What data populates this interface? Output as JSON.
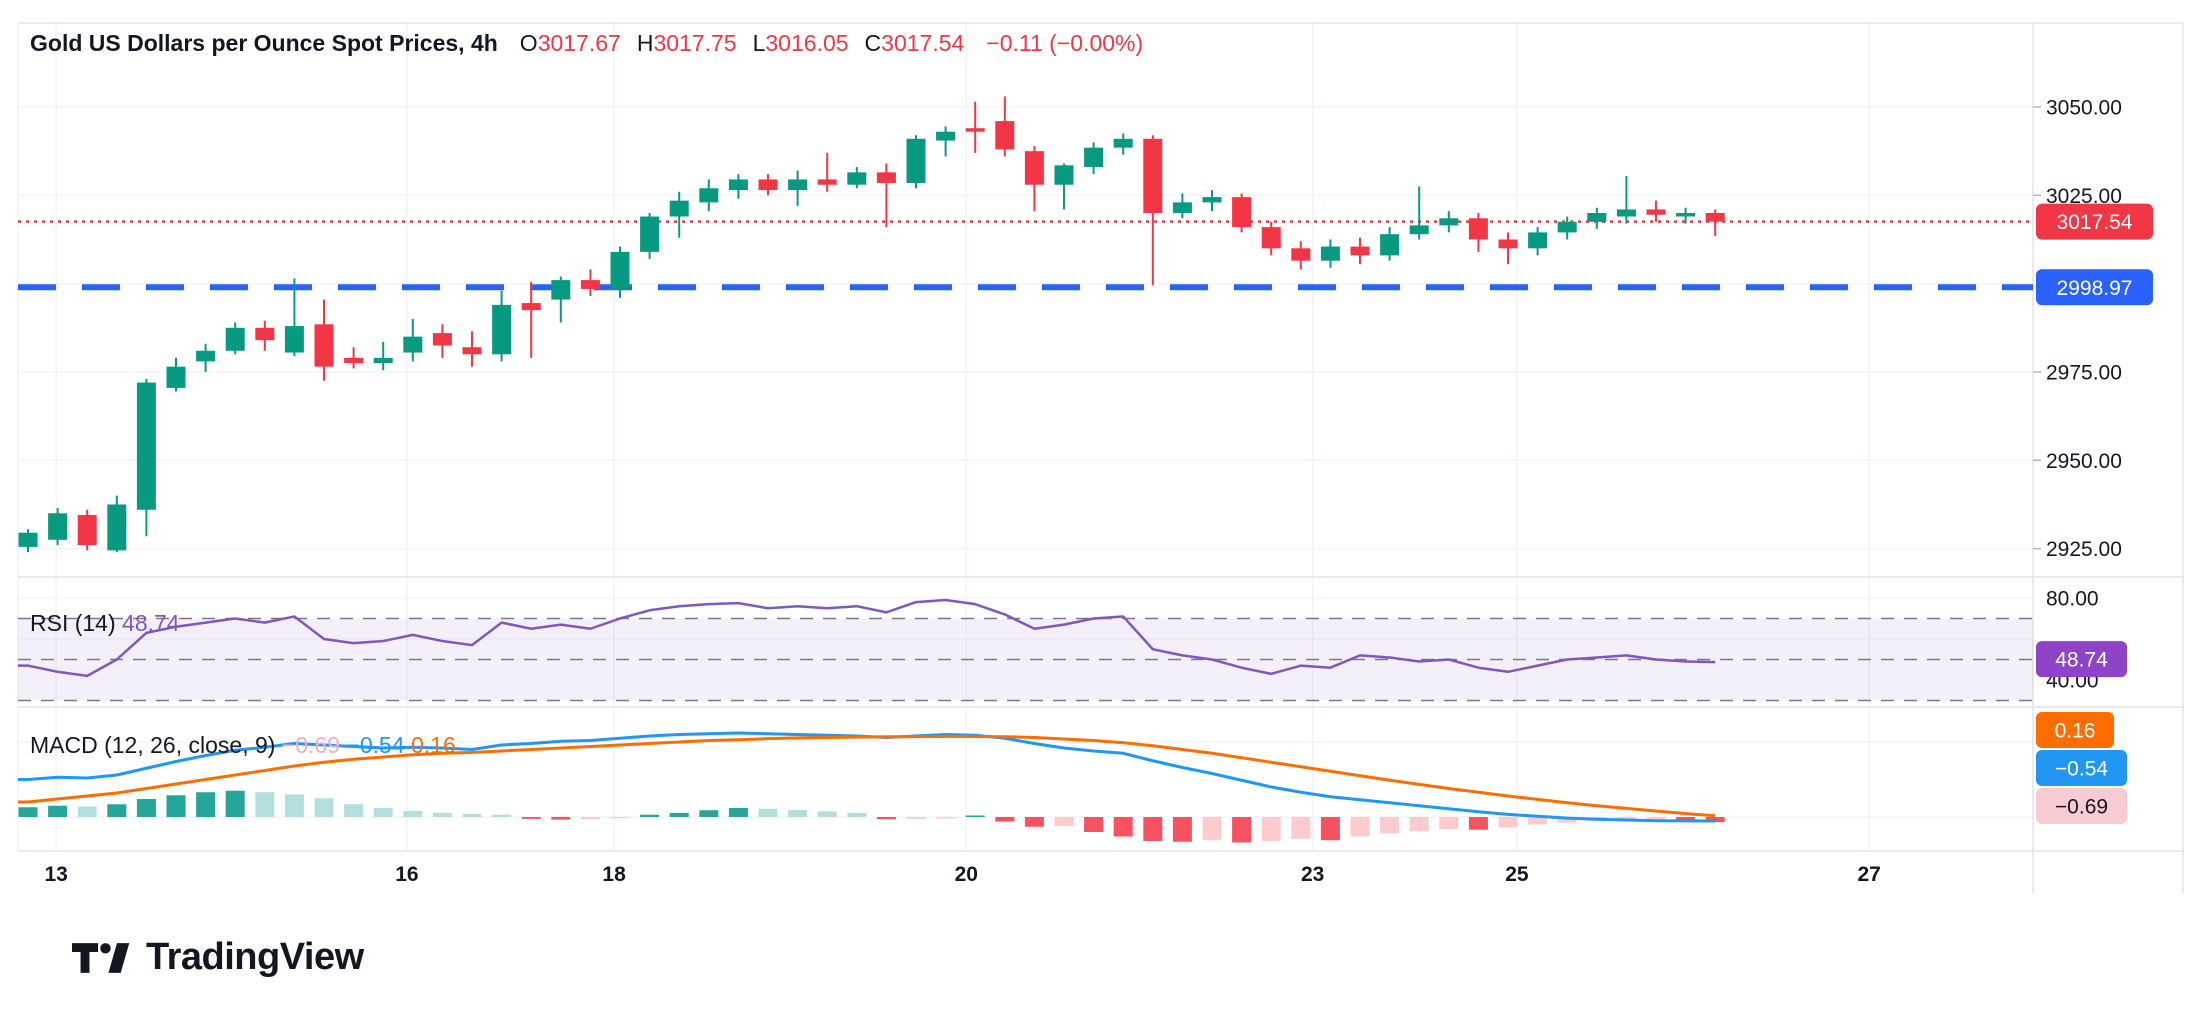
{
  "header": {
    "title": "Gold US Dollars per Ounce Spot Prices, 4h",
    "ohlc": [
      {
        "label": "O",
        "value": "3017.67"
      },
      {
        "label": "H",
        "value": "3017.75"
      },
      {
        "label": "L",
        "value": "3016.05"
      },
      {
        "label": "C",
        "value": "3017.54"
      }
    ],
    "change": "−0.11 (−0.00%)",
    "label_color": "#131722",
    "value_color": "#F23645"
  },
  "chart_data": {
    "type": "candlestick",
    "title": "Gold US Dollars per Ounce Spot Prices, 4h",
    "timeframe": "4h",
    "x_labels": [
      {
        "label": "13",
        "i": 0.95
      },
      {
        "label": "16",
        "i": 12.8
      },
      {
        "label": "18",
        "i": 19.8
      },
      {
        "label": "20",
        "i": 31.7
      },
      {
        "label": "23",
        "i": 43.4
      },
      {
        "label": "25",
        "i": 50.3
      },
      {
        "label": "27",
        "i": 62.2
      }
    ],
    "price_pane": {
      "up_color": "#089981",
      "down_color": "#F23645",
      "gridlines": [
        3050,
        3025,
        3000,
        2975,
        2950,
        2925
      ],
      "last_price_line": {
        "price": 3017.54,
        "color": "#F23645",
        "style": "dotted"
      },
      "level_line": {
        "price": 2998.97,
        "color": "#2962FF",
        "style": "dashed"
      },
      "candles": [
        [
          2925.5,
          2930.5,
          2924.0,
          2929.5
        ],
        [
          2927.5,
          2936.5,
          2926.0,
          2935.0
        ],
        [
          2934.5,
          2936.0,
          2924.5,
          2926.0
        ],
        [
          2924.5,
          2940.0,
          2924.0,
          2937.5
        ],
        [
          2936.0,
          2973.0,
          2928.5,
          2972.0
        ],
        [
          2970.5,
          2979.0,
          2969.5,
          2976.5
        ],
        [
          2978.0,
          2983.0,
          2975.0,
          2981.0
        ],
        [
          2981.0,
          2989.0,
          2980.0,
          2987.5
        ],
        [
          2987.5,
          2989.5,
          2981.0,
          2984.0
        ],
        [
          2980.5,
          3001.5,
          2979.5,
          2988.0
        ],
        [
          2988.5,
          2995.5,
          2972.5,
          2976.5
        ],
        [
          2979.0,
          2982.0,
          2976.0,
          2977.5
        ],
        [
          2977.5,
          2983.5,
          2975.5,
          2979.0
        ],
        [
          2980.5,
          2990.0,
          2978.0,
          2985.0
        ],
        [
          2986.0,
          2988.5,
          2979.0,
          2982.5
        ],
        [
          2982.0,
          2986.5,
          2976.5,
          2980.0
        ],
        [
          2980.0,
          2998.0,
          2978.0,
          2994.0
        ],
        [
          2994.5,
          3000.5,
          2979.0,
          2992.5
        ],
        [
          2995.5,
          3002.0,
          2989.0,
          3001.0
        ],
        [
          3001.0,
          3004.0,
          2996.5,
          2998.5
        ],
        [
          2998.5,
          3010.5,
          2996.0,
          3009.0
        ],
        [
          3009.0,
          3020.0,
          3007.0,
          3019.0
        ],
        [
          3019.0,
          3026.0,
          3013.0,
          3023.5
        ],
        [
          3023.0,
          3029.5,
          3020.5,
          3027.0
        ],
        [
          3026.5,
          3031.0,
          3024.0,
          3029.5
        ],
        [
          3029.5,
          3031.0,
          3025.0,
          3026.5
        ],
        [
          3026.5,
          3032.0,
          3022.0,
          3029.5
        ],
        [
          3029.5,
          3037.0,
          3026.0,
          3028.0
        ],
        [
          3028.0,
          3033.0,
          3027.0,
          3031.5
        ],
        [
          3031.5,
          3034.0,
          3016.0,
          3028.5
        ],
        [
          3028.5,
          3042.0,
          3027.0,
          3041.0
        ],
        [
          3040.5,
          3044.5,
          3036.0,
          3043.0
        ],
        [
          3044.0,
          3051.5,
          3037.0,
          3043.0
        ],
        [
          3046.0,
          3053.0,
          3036.0,
          3038.0
        ],
        [
          3037.5,
          3039.0,
          3020.5,
          3028.0
        ],
        [
          3028.0,
          3034.0,
          3021.0,
          3033.5
        ],
        [
          3033.0,
          3040.0,
          3031.0,
          3038.5
        ],
        [
          3038.5,
          3042.5,
          3036.5,
          3041.0
        ],
        [
          3041.0,
          3042.0,
          2999.5,
          3020.0
        ],
        [
          3020.0,
          3025.5,
          3018.5,
          3023.0
        ],
        [
          3023.0,
          3026.5,
          3020.5,
          3024.5
        ],
        [
          3024.5,
          3025.5,
          3014.5,
          3016.0
        ],
        [
          3016.0,
          3017.5,
          3008.0,
          3010.0
        ],
        [
          3010.0,
          3012.0,
          3004.0,
          3006.5
        ],
        [
          3006.5,
          3012.5,
          3004.5,
          3010.5
        ],
        [
          3010.5,
          3013.0,
          3005.5,
          3008.0
        ],
        [
          3008.0,
          3016.0,
          3006.5,
          3014.0
        ],
        [
          3014.0,
          3027.5,
          3012.5,
          3016.5
        ],
        [
          3016.5,
          3020.5,
          3014.5,
          3018.5
        ],
        [
          3018.5,
          3020.0,
          3009.0,
          3012.5
        ],
        [
          3012.5,
          3014.5,
          3005.5,
          3010.0
        ],
        [
          3010.0,
          3016.0,
          3008.0,
          3014.5
        ],
        [
          3014.5,
          3019.0,
          3012.5,
          3017.5
        ],
        [
          3017.5,
          3021.5,
          3015.5,
          3020.0
        ],
        [
          3019.0,
          3030.5,
          3017.0,
          3021.0
        ],
        [
          3021.0,
          3023.5,
          3017.5,
          3019.5
        ],
        [
          3019.0,
          3021.5,
          3017.0,
          3020.0
        ],
        [
          3020.0,
          3021.0,
          3013.5,
          3017.54
        ]
      ]
    },
    "rsi_pane": {
      "label_segments": [
        {
          "text": "RSI (14) ",
          "color": "#131722"
        },
        {
          "text": "48.74",
          "color": "#7E57C2"
        }
      ],
      "line_color": "#7E57C2",
      "levels": [
        70,
        50,
        30
      ],
      "band": [
        70,
        30
      ],
      "band_color": "#7E57C2",
      "values": [
        47,
        44,
        42,
        50,
        63,
        66,
        68,
        70,
        68,
        71,
        60,
        58,
        59,
        62,
        59,
        57,
        68,
        65,
        67,
        65,
        70,
        74,
        76,
        77,
        77.5,
        75,
        76,
        75,
        76,
        73,
        78,
        79,
        77,
        72,
        65,
        67,
        70,
        71,
        55,
        52,
        50,
        46,
        43,
        47,
        46,
        52,
        51,
        49,
        50,
        46,
        44,
        47,
        50,
        51,
        52,
        50,
        49,
        48.74
      ]
    },
    "macd_pane": {
      "label_segments": [
        {
          "text": "MACD (12, 26, close, 9) ",
          "color": "#131722"
        },
        {
          "text": "−0.69 ",
          "color": "#F5ADB6"
        },
        {
          "text": "−0.54 ",
          "color": "#2196F3"
        },
        {
          "text": "0.16",
          "color": "#FF6D00"
        }
      ],
      "macd_color": "#2196F3",
      "signal_color": "#FF6D00",
      "histogram_colors": {
        "up_rising": "#26A69A",
        "up_falling": "#B2DFDB",
        "down_falling": "#F7525F",
        "down_rising": "#FCCBCD"
      },
      "macd": [
        5.0,
        5.3,
        5.2,
        5.6,
        6.5,
        7.4,
        8.2,
        8.9,
        9.3,
        9.8,
        9.6,
        9.4,
        9.2,
        9.3,
        9.2,
        9.0,
        9.6,
        9.8,
        10.1,
        10.2,
        10.5,
        10.8,
        11.0,
        11.1,
        11.2,
        11.1,
        11.0,
        10.9,
        10.8,
        10.6,
        10.8,
        11.0,
        10.9,
        10.5,
        9.8,
        9.2,
        8.8,
        8.5,
        7.5,
        6.6,
        5.8,
        4.9,
        4.0,
        3.3,
        2.7,
        2.3,
        1.9,
        1.5,
        1.1,
        0.7,
        0.35,
        0.1,
        -0.15,
        -0.3,
        -0.4,
        -0.5,
        -0.52,
        -0.54
      ],
      "signal": [
        2.0,
        2.4,
        2.8,
        3.2,
        3.8,
        4.4,
        5.0,
        5.6,
        6.2,
        6.8,
        7.3,
        7.7,
        8.0,
        8.3,
        8.5,
        8.6,
        8.8,
        9.0,
        9.2,
        9.4,
        9.6,
        9.8,
        10.0,
        10.2,
        10.3,
        10.45,
        10.55,
        10.6,
        10.65,
        10.7,
        10.72,
        10.75,
        10.74,
        10.7,
        10.6,
        10.4,
        10.2,
        9.9,
        9.5,
        9.0,
        8.5,
        7.9,
        7.3,
        6.7,
        6.1,
        5.5,
        4.9,
        4.35,
        3.8,
        3.3,
        2.8,
        2.35,
        1.9,
        1.5,
        1.15,
        0.8,
        0.45,
        0.16
      ],
      "histogram": [
        1.3,
        1.5,
        1.4,
        1.7,
        2.4,
        2.9,
        3.3,
        3.5,
        3.3,
        3.0,
        2.5,
        1.7,
        1.2,
        0.8,
        0.55,
        0.4,
        0.3,
        -0.25,
        -0.35,
        -0.3,
        -0.15,
        0.3,
        0.55,
        0.9,
        1.2,
        1.1,
        0.95,
        0.75,
        0.55,
        -0.3,
        -0.25,
        -0.2,
        0.2,
        -0.6,
        -1.3,
        -1.2,
        -2.0,
        -2.6,
        -3.2,
        -3.3,
        -3.1,
        -3.4,
        -3.2,
        -2.9,
        -3.1,
        -2.6,
        -2.2,
        -1.9,
        -1.6,
        -1.7,
        -1.4,
        -1.0,
        -0.75,
        -0.55,
        -0.4,
        -0.35,
        -0.45,
        -0.69
      ]
    }
  },
  "price_axis": {
    "ticks": [
      {
        "text": "3050.00",
        "price": 3050
      },
      {
        "text": "3025.00",
        "price": 3025
      },
      {
        "text": "2975.00",
        "price": 2975
      },
      {
        "text": "2950.00",
        "price": 2950
      },
      {
        "text": "2925.00",
        "price": 2925
      }
    ],
    "last_badge": {
      "text": "3017.54",
      "price": 3017.54,
      "bg": "#F23645",
      "fg": "#FFFFFF"
    },
    "level_badge": {
      "text": "2998.97",
      "price": 2998.97,
      "bg": "#2962FF",
      "fg": "#FFFFFF"
    }
  },
  "rsi_axis": {
    "ticks": [
      {
        "text": "80.00",
        "v": 80
      },
      {
        "text": "40.00",
        "v": 40
      }
    ],
    "badge": {
      "text": "48.74",
      "v": 48.74,
      "bg": "#8E44C8",
      "fg": "#FFFFFF"
    }
  },
  "macd_axis": {
    "badges": [
      {
        "text": "0.16",
        "bg": "#FF6D00",
        "fg": "#FFFFFF"
      },
      {
        "text": "−0.54",
        "bg": "#2196F3",
        "fg": "#FFFFFF"
      },
      {
        "text": "−0.69",
        "bg": "#F9CBD2",
        "fg": "#131722"
      }
    ]
  },
  "logo": {
    "text": "TradingView"
  },
  "colors": {
    "grid": "#F0F3FA",
    "separator": "#E0E3EB",
    "axis_text": "#131722",
    "dashed_level": "#787B86",
    "background": "#FFFFFF"
  }
}
